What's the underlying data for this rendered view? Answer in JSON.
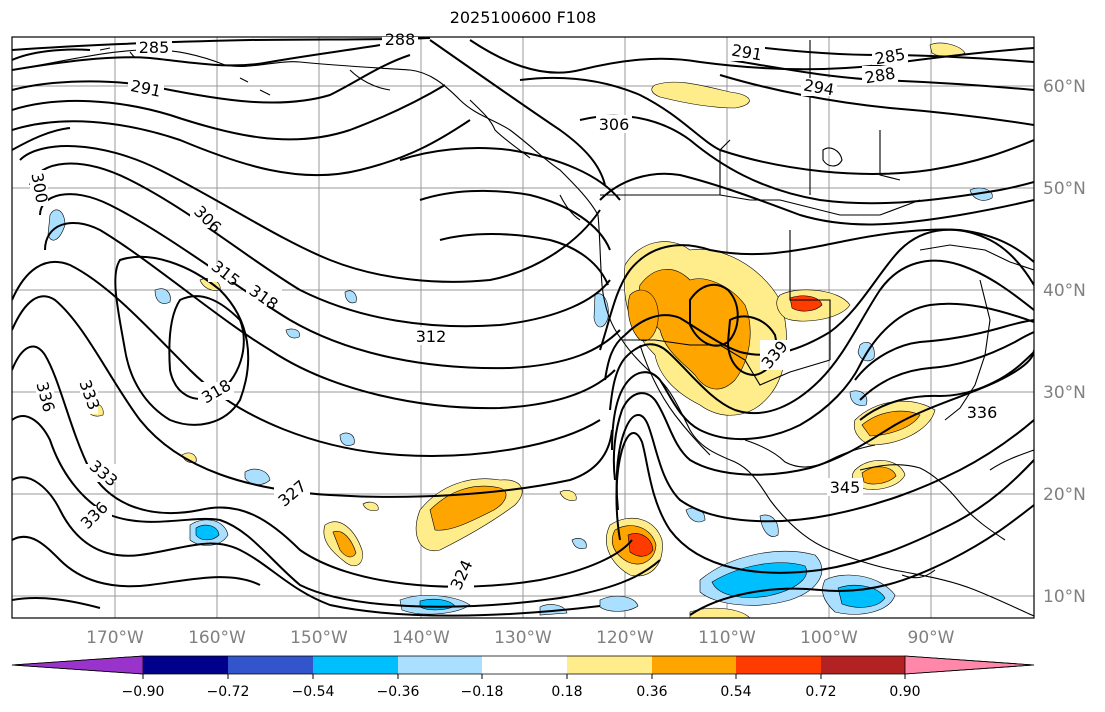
{
  "title": "2025100600 F108",
  "map": {
    "lon_labels": [
      "170°W",
      "160°W",
      "150°W",
      "140°W",
      "130°W",
      "120°W",
      "110°W",
      "100°W",
      "90°W"
    ],
    "lat_labels": [
      "60°N",
      "50°N",
      "40°N",
      "30°N",
      "20°N",
      "10°N"
    ],
    "contour_labels": [
      {
        "text": "285",
        "id": "c285a"
      },
      {
        "text": "288",
        "id": "c288top"
      },
      {
        "text": "291",
        "id": "c291a"
      },
      {
        "text": "291",
        "id": "c291b"
      },
      {
        "text": "294",
        "id": "c294"
      },
      {
        "text": "285",
        "id": "c285b"
      },
      {
        "text": "288",
        "id": "c288b"
      },
      {
        "text": "306",
        "id": "c306a"
      },
      {
        "text": "300",
        "id": "c300"
      },
      {
        "text": "306",
        "id": "c306b"
      },
      {
        "text": "315",
        "id": "c315"
      },
      {
        "text": "318",
        "id": "c318a"
      },
      {
        "text": "312",
        "id": "c312"
      },
      {
        "text": "318",
        "id": "c318b"
      },
      {
        "text": "336",
        "id": "c336a"
      },
      {
        "text": "333",
        "id": "c333a"
      },
      {
        "text": "333",
        "id": "c333b"
      },
      {
        "text": "336",
        "id": "c336b"
      },
      {
        "text": "327",
        "id": "c327"
      },
      {
        "text": "324",
        "id": "c324"
      },
      {
        "text": "339",
        "id": "c339"
      },
      {
        "text": "336",
        "id": "c336c"
      },
      {
        "text": "345",
        "id": "c345"
      }
    ],
    "colors": {
      "contour": "#000000",
      "grid": "#808080",
      "coast": "#000000",
      "pos1": "#ffec8b",
      "pos2": "#ffa500",
      "pos3": "#ff3c00",
      "neg1": "#aadfff",
      "neg2": "#00bfff"
    }
  },
  "colorbar": {
    "tick_labels": [
      "−0.90",
      "−0.72",
      "−0.54",
      "−0.36",
      "−0.18",
      "0.18",
      "0.36",
      "0.54",
      "0.72",
      "0.90"
    ],
    "colors": [
      "#9933cc",
      "#00008b",
      "#3355cc",
      "#00bfff",
      "#aadfff",
      "#ffffff",
      "#ffec8b",
      "#ffa500",
      "#ff3c00",
      "#b22222",
      "#ff88aa"
    ]
  }
}
